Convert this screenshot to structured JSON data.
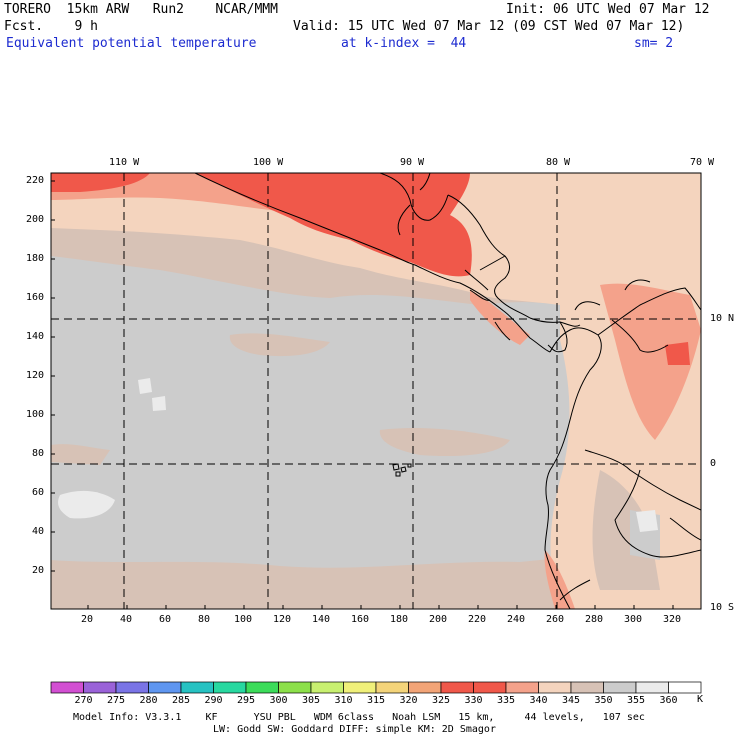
{
  "header": {
    "line1_left": "TORERO  15km ARW   Run2    NCAR/MMM",
    "line1_right": "Init: 06 UTC Wed 07 Mar 12",
    "line2_left": "Fcst.    9 h",
    "line2_right": "Valid: 15 UTC Wed 07 Mar 12 (09 CST Wed 07 Mar 12)",
    "field_name": "Equivalent potential temperature",
    "level": "at k-index =  44",
    "smoothing": "sm= 2"
  },
  "map": {
    "top_lon_labels": [
      "110 W",
      "100 W",
      "90 W",
      "80 W",
      "70 W"
    ],
    "right_lat_labels": [
      "10 N",
      "0",
      "10 S"
    ],
    "left_grid_ticks": [
      "220",
      "200",
      "180",
      "160",
      "140",
      "120",
      "100",
      "80",
      "60",
      "40",
      "20"
    ],
    "bottom_grid_ticks": [
      "20",
      "40",
      "60",
      "80",
      "100",
      "120",
      "140",
      "160",
      "180",
      "200",
      "220",
      "240",
      "260",
      "280",
      "300",
      "320"
    ]
  },
  "colorbar": {
    "unit": "K",
    "labels": [
      "270",
      "275",
      "280",
      "285",
      "290",
      "295",
      "300",
      "305",
      "310",
      "315",
      "320",
      "325",
      "330",
      "335",
      "340",
      "345",
      "350",
      "355",
      "360"
    ],
    "colors": [
      "#d24fd2",
      "#9a62d8",
      "#7a74e6",
      "#5f96f0",
      "#27c2c2",
      "#28d8a0",
      "#3cdc5a",
      "#8ce04a",
      "#c8f070",
      "#f0f07a",
      "#f4d47a",
      "#f2a477",
      "#f0584a",
      "#f0584a",
      "#f4a28b",
      "#f4d4be",
      "#d7c2b6",
      "#cccccc",
      "#ebebeb"
    ]
  },
  "footer": {
    "line1": "Model Info: V3.3.1    KF      YSU PBL   WDM 6class   Noah LSM   15 km,     44 levels,   107 sec",
    "line2": "LW: Godd SW: Goddard DIFF: simple KM: 2D Smagor"
  }
}
